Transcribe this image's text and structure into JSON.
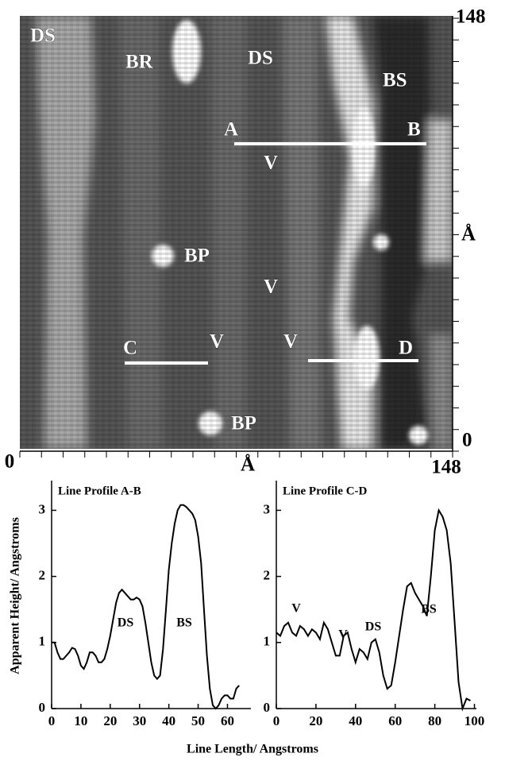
{
  "stm_image": {
    "labels": [
      "DS",
      "BR",
      "DS",
      "BS",
      "A",
      "B",
      "V",
      "BP",
      "V",
      "C",
      "V",
      "V",
      "D",
      "BP"
    ],
    "x_axis": {
      "start": "0",
      "end": "148",
      "unit": "Å"
    },
    "y_axis": {
      "start": "0",
      "end": "148",
      "unit": "Å"
    }
  },
  "chart_data": [
    {
      "type": "line",
      "title": "Line Profile A-B",
      "y_label": "Apparent Height/ Angstroms",
      "x_label": "Line Length/ Angstroms",
      "x": [
        0,
        1,
        2,
        3,
        4,
        5,
        6,
        7,
        8,
        9,
        10,
        11,
        12,
        13,
        14,
        15,
        16,
        17,
        18,
        19,
        20,
        21,
        22,
        23,
        24,
        25,
        26,
        27,
        28,
        29,
        30,
        31,
        32,
        33,
        34,
        35,
        36,
        37,
        38,
        39,
        40,
        41,
        42,
        43,
        44,
        45,
        46,
        47,
        48,
        49,
        50,
        51,
        52,
        53,
        54,
        55,
        56,
        57,
        58,
        59,
        60,
        61,
        62,
        63,
        64
      ],
      "values": [
        1.0,
        1.0,
        0.85,
        0.75,
        0.75,
        0.8,
        0.85,
        0.92,
        0.9,
        0.8,
        0.65,
        0.6,
        0.7,
        0.85,
        0.85,
        0.8,
        0.7,
        0.7,
        0.75,
        0.9,
        1.1,
        1.35,
        1.6,
        1.75,
        1.8,
        1.75,
        1.7,
        1.65,
        1.65,
        1.68,
        1.65,
        1.55,
        1.3,
        1.0,
        0.7,
        0.5,
        0.45,
        0.5,
        0.9,
        1.5,
        2.1,
        2.5,
        2.8,
        3.0,
        3.08,
        3.08,
        3.05,
        3.0,
        2.95,
        2.85,
        2.6,
        2.2,
        1.5,
        0.8,
        0.3,
        0.05,
        0.0,
        0.05,
        0.15,
        0.2,
        0.2,
        0.15,
        0.15,
        0.3,
        0.35
      ],
      "color": "#000000",
      "annotations": [
        "DS",
        "BS"
      ],
      "xlim": [
        0,
        68
      ],
      "ylim": [
        0,
        3.45
      ],
      "xticks": [
        0,
        10,
        20,
        30,
        40,
        50,
        60
      ],
      "yticks": [
        0,
        1,
        2,
        3
      ]
    },
    {
      "type": "line",
      "title": "Line Profile C-D",
      "x": [
        0,
        2,
        4,
        6,
        8,
        10,
        12,
        14,
        16,
        18,
        20,
        22,
        24,
        26,
        28,
        30,
        32,
        34,
        36,
        38,
        40,
        42,
        44,
        46,
        48,
        50,
        52,
        54,
        56,
        58,
        60,
        62,
        64,
        66,
        68,
        70,
        72,
        74,
        76,
        78,
        80,
        82,
        84,
        86,
        88,
        90,
        92,
        94,
        96,
        98
      ],
      "values": [
        1.15,
        1.1,
        1.25,
        1.3,
        1.15,
        1.1,
        1.25,
        1.2,
        1.1,
        1.2,
        1.15,
        1.05,
        1.3,
        1.2,
        1.0,
        0.8,
        0.8,
        1.1,
        1.15,
        0.9,
        0.7,
        0.9,
        0.85,
        0.75,
        1.0,
        1.05,
        0.85,
        0.5,
        0.3,
        0.35,
        0.7,
        1.1,
        1.5,
        1.85,
        1.9,
        1.75,
        1.65,
        1.55,
        1.4,
        2.0,
        2.7,
        3.0,
        2.9,
        2.7,
        2.2,
        1.3,
        0.4,
        0.0,
        0.15,
        0.12
      ],
      "color": "#000000",
      "annotations": [
        "V",
        "V",
        "DS",
        "BS"
      ],
      "xlim": [
        0,
        101
      ],
      "ylim": [
        0,
        3.45
      ],
      "xticks": [
        0,
        20,
        40,
        60,
        80,
        100
      ],
      "yticks": [
        0,
        1,
        2,
        3
      ]
    }
  ]
}
